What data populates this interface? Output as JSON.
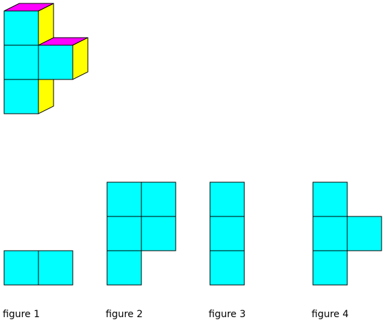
{
  "colors": {
    "front": "#00ffff",
    "top": "#ff00ff",
    "side": "#ffff00",
    "stroke": "#000000"
  },
  "solid": {
    "cubes": 4,
    "description_name": "isometric cube stack"
  },
  "figures": [
    {
      "label": "figure 1",
      "cells": [
        [
          0,
          0
        ],
        [
          1,
          0
        ]
      ]
    },
    {
      "label": "figure 2",
      "cells": [
        [
          0,
          0
        ],
        [
          1,
          0
        ],
        [
          0,
          1
        ],
        [
          1,
          1
        ],
        [
          0,
          2
        ]
      ]
    },
    {
      "label": "figure 3",
      "cells": [
        [
          0,
          0
        ],
        [
          0,
          1
        ],
        [
          0,
          2
        ]
      ]
    },
    {
      "label": "figure 4",
      "cells": [
        [
          0,
          0
        ],
        [
          0,
          1
        ],
        [
          1,
          1
        ],
        [
          0,
          2
        ]
      ]
    }
  ]
}
